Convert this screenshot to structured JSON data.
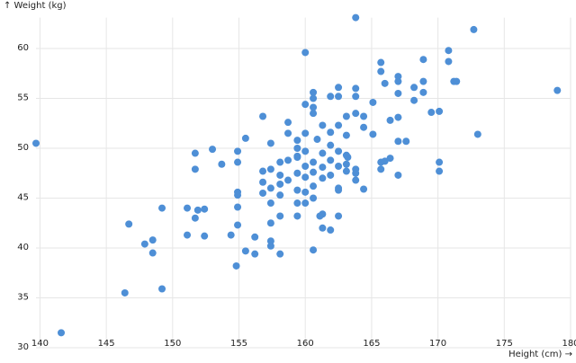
{
  "chart_data": {
    "type": "scatter",
    "y_label": "↑ Weight (kg)",
    "x_label": "Height (cm) →",
    "x": [
      139.7,
      141.6,
      146.4,
      146.7,
      147.9,
      148.5,
      148.5,
      149.2,
      149.2,
      151.1,
      151.1,
      151.7,
      151.7,
      151.7,
      151.9,
      152.4,
      152.4,
      153.0,
      153.7,
      154.4,
      154.8,
      154.9,
      154.9,
      154.9,
      154.9,
      154.9,
      154.9,
      155.5,
      155.5,
      156.2,
      156.2,
      156.8,
      156.8,
      156.8,
      156.8,
      157.4,
      157.4,
      157.4,
      157.4,
      157.4,
      157.4,
      157.4,
      158.1,
      158.1,
      158.1,
      158.1,
      158.1,
      158.1,
      158.7,
      158.7,
      158.7,
      158.7,
      159.4,
      159.4,
      159.4,
      159.4,
      159.4,
      159.4,
      159.4,
      159.4,
      160.0,
      160.0,
      160.0,
      160.0,
      160.0,
      160.0,
      160.0,
      160.0,
      160.6,
      160.6,
      160.6,
      160.6,
      160.6,
      160.6,
      160.6,
      160.6,
      160.6,
      160.9,
      161.1,
      161.3,
      161.3,
      161.3,
      161.3,
      161.3,
      161.3,
      161.9,
      161.9,
      161.9,
      161.9,
      161.9,
      161.9,
      162.5,
      162.5,
      162.5,
      162.5,
      162.5,
      162.5,
      162.5,
      162.5,
      163.1,
      163.1,
      163.1,
      163.1,
      163.1,
      163.2,
      163.8,
      163.8,
      163.8,
      163.8,
      163.8,
      163.8,
      163.8,
      164.4,
      164.4,
      164.4,
      165.1,
      165.1,
      165.7,
      165.7,
      165.7,
      165.7,
      166.0,
      166.0,
      166.4,
      166.4,
      167.0,
      167.0,
      167.0,
      167.0,
      167.0,
      167.0,
      167.6,
      168.2,
      168.2,
      168.9,
      168.9,
      168.9,
      169.5,
      170.1,
      170.1,
      170.1,
      170.8,
      170.8,
      171.2,
      171.4,
      172.7,
      173.0,
      179.0
    ],
    "values": [
      50.5,
      31.5,
      35.5,
      42.4,
      40.4,
      40.8,
      39.5,
      44.0,
      35.9,
      41.3,
      44.0,
      49.5,
      47.9,
      43.0,
      43.8,
      43.9,
      41.2,
      49.9,
      48.4,
      41.3,
      38.2,
      49.7,
      48.6,
      45.6,
      45.3,
      44.1,
      42.3,
      51.0,
      39.7,
      41.1,
      39.4,
      53.2,
      47.7,
      46.6,
      45.5,
      50.5,
      47.9,
      46.0,
      44.5,
      42.5,
      40.7,
      40.2,
      47.3,
      46.4,
      45.3,
      43.2,
      39.4,
      48.6,
      52.6,
      51.5,
      48.8,
      46.8,
      50.8,
      50.0,
      49.1,
      47.5,
      45.8,
      44.5,
      43.2,
      49.2,
      59.6,
      54.4,
      51.5,
      49.7,
      48.2,
      47.1,
      45.6,
      44.5,
      55.6,
      55.0,
      54.1,
      53.5,
      48.6,
      47.6,
      46.2,
      45.0,
      39.8,
      50.9,
      43.2,
      52.3,
      49.5,
      48.1,
      47.0,
      42.0,
      43.4,
      55.2,
      51.6,
      50.3,
      48.8,
      47.3,
      41.8,
      56.1,
      55.2,
      52.3,
      49.7,
      48.2,
      46.0,
      45.8,
      43.2,
      53.2,
      51.3,
      49.3,
      48.4,
      47.7,
      49.1,
      63.1,
      56.0,
      55.2,
      53.5,
      47.9,
      47.5,
      46.8,
      53.2,
      52.1,
      45.9,
      54.6,
      51.4,
      58.6,
      57.7,
      48.6,
      47.9,
      56.5,
      48.7,
      52.8,
      49.0,
      57.2,
      56.7,
      55.5,
      53.1,
      50.7,
      47.3,
      50.7,
      56.1,
      54.8,
      58.9,
      56.7,
      55.6,
      53.6,
      53.7,
      48.6,
      47.7,
      59.8,
      58.7,
      56.7,
      56.7,
      61.9,
      51.4,
      55.8
    ],
    "color": "#4e8fd6",
    "xlim": [
      139.7,
      180
    ],
    "ylim": [
      30,
      63.1
    ],
    "xticks": [
      140,
      145,
      150,
      155,
      160,
      165,
      170,
      175,
      180
    ],
    "yticks": [
      30,
      35,
      40,
      45,
      50,
      55,
      60
    ],
    "grid": true
  }
}
